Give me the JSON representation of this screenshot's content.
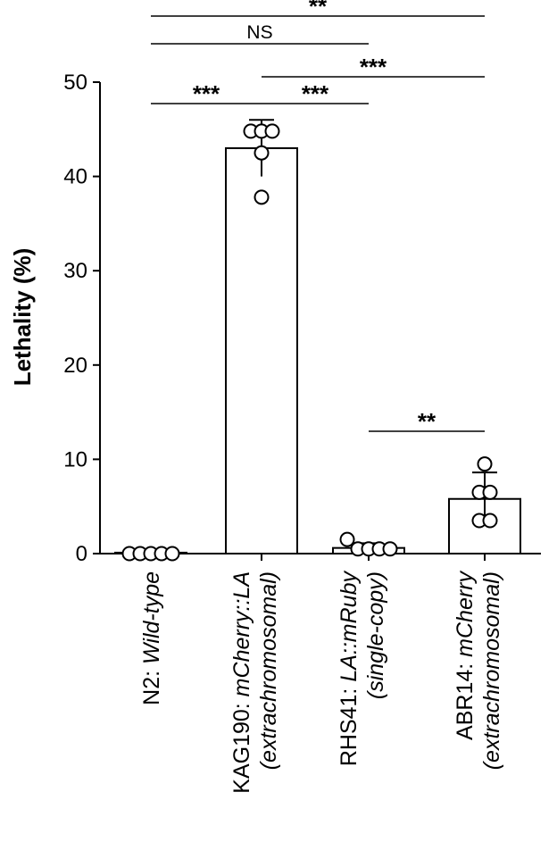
{
  "chart_data": {
    "type": "bar",
    "ylabel": "Lethality (%)",
    "ylim": [
      0,
      50
    ],
    "yticks": [
      0,
      10,
      20,
      30,
      40,
      50
    ],
    "grid": false,
    "legend": "none",
    "categories": [
      {
        "prefix": "N2: ",
        "name": "Wild-type",
        "sub": ""
      },
      {
        "prefix": "KAG190: ",
        "name": "mCherry::LA",
        "sub": "(extrachromosomal)"
      },
      {
        "prefix": "RHS41: ",
        "name": "LA::mRuby",
        "sub": "(single-copy)"
      },
      {
        "prefix": "ABR14: ",
        "name": "mCherry",
        "sub": "(extrachromosomal)"
      }
    ],
    "values": [
      0.1,
      43.0,
      0.6,
      5.8
    ],
    "errors": [
      0,
      3.0,
      0.5,
      2.8
    ],
    "points": [
      [
        0,
        0,
        0,
        0,
        0
      ],
      [
        44.8,
        44.8,
        44.8,
        42.5,
        37.8
      ],
      [
        1.5,
        0.5,
        0.5,
        0.5,
        0.5
      ],
      [
        9.5,
        6.5,
        6.5,
        3.5,
        3.5
      ]
    ],
    "bar_fill": "#ffffff",
    "bar_stroke": "#000000",
    "comparisons": [
      {
        "from": 0,
        "to": 3,
        "label": "**"
      },
      {
        "from": 0,
        "to": 2,
        "label": "NS"
      },
      {
        "from": 1,
        "to": 3,
        "label": "***"
      },
      {
        "from": 0,
        "to": 1,
        "label": "***"
      },
      {
        "from": 1,
        "to": 2,
        "label": "***"
      },
      {
        "from": 2,
        "to": 3,
        "label": "**"
      }
    ]
  }
}
